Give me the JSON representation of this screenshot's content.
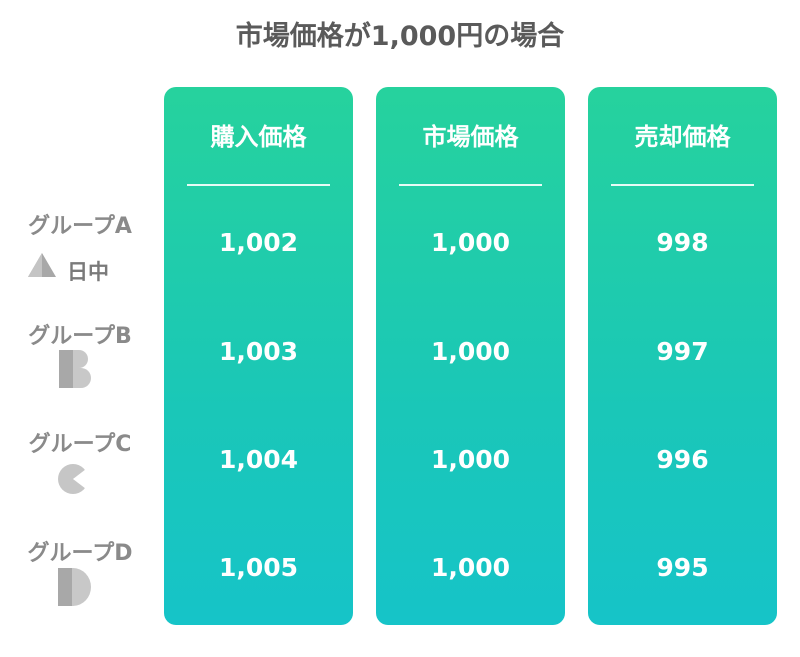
{
  "title": "市場価格が1,000円の場合",
  "columns": [
    {
      "header": "購入価格",
      "values": [
        "1,002",
        "1,003",
        "1,004",
        "1,005"
      ]
    },
    {
      "header": "市場価格",
      "values": [
        "1,000",
        "1,000",
        "1,000",
        "1,000"
      ]
    },
    {
      "header": "売却価格",
      "values": [
        "998",
        "997",
        "996",
        "995"
      ]
    }
  ],
  "rows": [
    {
      "label": "グループA",
      "icon": "triangle-icon",
      "sub": "日中"
    },
    {
      "label": "グループB",
      "icon": "letter-b-icon"
    },
    {
      "label": "グループC",
      "icon": "letter-c-icon"
    },
    {
      "label": "グループD",
      "icon": "letter-d-icon"
    }
  ],
  "colors": {
    "gradient_top": "#26d29d",
    "gradient_bottom": "#16c4c8",
    "title_text": "#5a5a5a",
    "label_text": "#8a8a8a"
  }
}
